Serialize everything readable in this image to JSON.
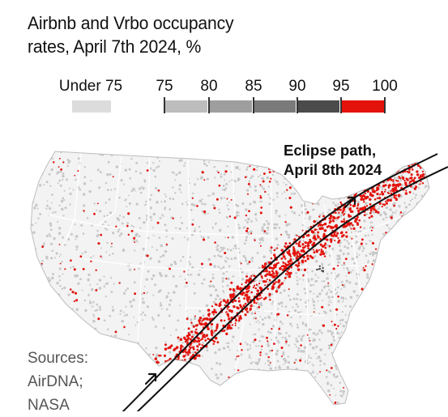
{
  "title_line1": "Airbnb and Vrbo occupancy",
  "title_line2": "rates, April 7th 2024, %",
  "legend": {
    "under_label": "Under 75",
    "tick_labels": [
      "75",
      "80",
      "85",
      "90",
      "95",
      "100"
    ],
    "colors": {
      "under_75": "#dcdcdc",
      "75_80": "#bdbdbd",
      "80_85": "#9e9e9e",
      "85_90": "#7a7a7a",
      "90_95": "#4b4b4b",
      "95_100": "#e3120b"
    }
  },
  "annotation": {
    "line1": "Eclipse path,",
    "line2": "April 8th 2024"
  },
  "sources": {
    "line1": "Sources:",
    "line2": "AirDNA;",
    "line3": "NASA"
  },
  "map": {
    "region": "Contiguous United States",
    "point_colors": {
      "background": "#c8c8c8",
      "high": "#e3120b"
    },
    "border_color": "#ffffff"
  }
}
